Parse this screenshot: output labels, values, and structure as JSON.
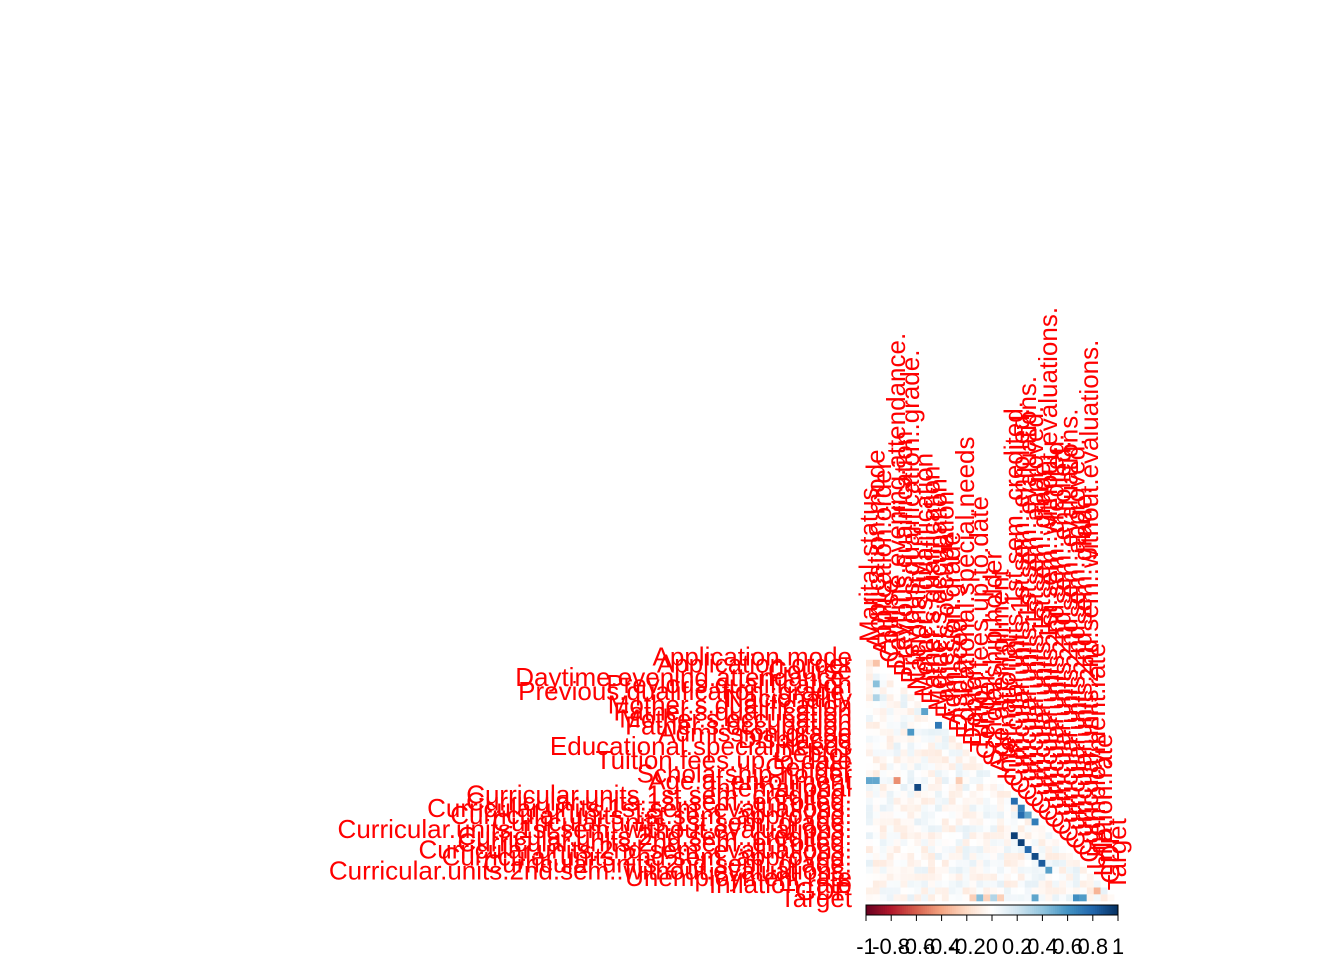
{
  "chart_data": {
    "type": "heatmap",
    "title": "",
    "layout": "lower-triangle correlation matrix",
    "variables": [
      "Marital.status",
      "Application.mode",
      "Application.order",
      "Course",
      "Daytime.evening.attendance.",
      "Previous.qualification",
      "Previous.qualification..grade.",
      "Nacionality",
      "Mother.s.qualification",
      "Father.s.qualification",
      "Mother.s.occupation",
      "Father.s.occupation",
      "Admission.grade",
      "Displaced",
      "Educational.special.needs",
      "Debtor",
      "Tuition.fees.up.to.date",
      "Gender",
      "Scholarship.holder",
      "Age.at.enrollment",
      "International",
      "Curricular.units.1st.sem..credited.",
      "Curricular.units.1st.sem..enrolled.",
      "Curricular.units.1st.sem..evaluations.",
      "Curricular.units.1st.sem..approved.",
      "Curricular.units.1st.sem..grade.",
      "Curricular.units.1st.sem..without.evaluations.",
      "Curricular.units.2nd.sem..credited.",
      "Curricular.units.2nd.sem..enrolled.",
      "Curricular.units.2nd.sem..evaluations.",
      "Curricular.units.2nd.sem..approved.",
      "Curricular.units.2nd.sem..grade.",
      "Curricular.units.2nd.sem..without.evaluations.",
      "Unemployment.rate",
      "Inflation.rate",
      "GDP",
      "Target"
    ],
    "visible_row_labels": [
      "Application.mode",
      "Application.order",
      "Course",
      "Daytime.evening.attendance.",
      "Previous.qualification",
      "Previous.qualification..grade.",
      "Nacionality",
      "Mother.s.qualification",
      "Father.s.qualification",
      "Mother.s.occupation",
      "Father.s.occupation",
      "Admission.grade",
      "Displaced",
      "Educational.special.needs",
      "Debtor",
      "Tuition.fees.up.to.date",
      "Gender",
      "Scholarship.holder",
      "Age.at.enrollment",
      "International",
      "Curricular.units.1st.sem..credited.",
      "Curricular.units.1st.sem..enrolled.",
      "Curricular.units.1st.sem..evaluations.",
      "Curricular.units.1st.sem..approved.",
      "Curricular.units.1st.sem..grade.",
      "Curricular.units.1st.sem..without.evaluations.",
      "Curricular.units.2nd.sem..credited.",
      "Curricular.units.2nd.sem..enrolled.",
      "Curricular.units.2nd.sem..evaluations.",
      "Curricular.units.2nd.sem..approved.",
      "Curricular.units.2nd.sem..grade.",
      "Curricular.units.2nd.sem..without.evaluations.",
      "Unemployment.rate",
      "Inflation.rate",
      "GDP",
      "Target"
    ],
    "colorbar": {
      "range": [
        -1,
        1
      ],
      "ticks": [
        -1,
        -0.8,
        -0.6,
        -0.4,
        -0.2,
        0,
        0.2,
        0.4,
        0.6,
        0.8,
        1
      ],
      "tick_labels": [
        "-1",
        "-0.8",
        "-0.6",
        "-0.4",
        "-0.2",
        "0",
        "0.2",
        "0.4",
        "0.6",
        "0.8",
        "1"
      ],
      "colors": [
        "#67001f",
        "#b2182b",
        "#d6604d",
        "#f4a582",
        "#fddbc7",
        "#ffffff",
        "#d1e5f0",
        "#92c5de",
        "#4393c3",
        "#2166ac",
        "#053061"
      ]
    },
    "label_color": "#ff0000",
    "strong_correlations": [
      {
        "row": "Application.order",
        "col": "Marital.status",
        "value": -0.13
      },
      {
        "row": "Application.order",
        "col": "Application.mode",
        "value": -0.29
      },
      {
        "row": "Previous.qualification",
        "col": "Application.mode",
        "value": 0.42
      },
      {
        "row": "Nacionality",
        "col": "Application.mode",
        "value": 0.31
      },
      {
        "row": "Father.s.qualification",
        "col": "Mother.s.qualification",
        "value": 0.54
      },
      {
        "row": "Father.s.occupation",
        "col": "Mother.s.occupation",
        "value": 0.72
      },
      {
        "row": "Admission.grade",
        "col": "Previous.qualification..grade.",
        "value": 0.58
      },
      {
        "row": "Age.at.enrollment",
        "col": "Marital.status",
        "value": 0.52
      },
      {
        "row": "Age.at.enrollment",
        "col": "Application.mode",
        "value": 0.52
      },
      {
        "row": "Age.at.enrollment",
        "col": "Daytime.evening.attendance.",
        "value": -0.46
      },
      {
        "row": "Age.at.enrollment",
        "col": "Displaced",
        "value": -0.25
      },
      {
        "row": "International",
        "col": "Nacionality",
        "value": 0.91
      },
      {
        "row": "Curricular.units.1st.sem..enrolled.",
        "col": "Curricular.units.1st.sem..credited.",
        "value": 0.77
      },
      {
        "row": "Curricular.units.1st.sem..evaluations.",
        "col": "Curricular.units.1st.sem..enrolled.",
        "value": 0.68
      },
      {
        "row": "Curricular.units.1st.sem..approved.",
        "col": "Curricular.units.1st.sem..enrolled.",
        "value": 0.77
      },
      {
        "row": "Curricular.units.1st.sem..approved.",
        "col": "Curricular.units.1st.sem..evaluations.",
        "value": 0.52
      },
      {
        "row": "Curricular.units.1st.sem..grade.",
        "col": "Curricular.units.1st.sem..approved.",
        "value": 0.7
      },
      {
        "row": "Curricular.units.2nd.sem..credited.",
        "col": "Curricular.units.1st.sem..credited.",
        "value": 0.94
      },
      {
        "row": "Curricular.units.2nd.sem..enrolled.",
        "col": "Curricular.units.1st.sem..enrolled.",
        "value": 0.94
      },
      {
        "row": "Curricular.units.2nd.sem..evaluations.",
        "col": "Curricular.units.1st.sem..evaluations.",
        "value": 0.78
      },
      {
        "row": "Curricular.units.2nd.sem..approved.",
        "col": "Curricular.units.1st.sem..approved.",
        "value": 0.9
      },
      {
        "row": "Curricular.units.2nd.sem..grade.",
        "col": "Curricular.units.1st.sem..grade.",
        "value": 0.84
      },
      {
        "row": "Curricular.units.2nd.sem..without.evaluations.",
        "col": "Curricular.units.1st.sem..without.evaluations.",
        "value": 0.55
      },
      {
        "row": "GDP",
        "col": "Unemployment.rate",
        "value": -0.34
      },
      {
        "row": "Target",
        "col": "Curricular.units.2nd.sem..approved.",
        "value": 0.62
      },
      {
        "row": "Target",
        "col": "Curricular.units.2nd.sem..grade.",
        "value": 0.57
      },
      {
        "row": "Target",
        "col": "Curricular.units.1st.sem..approved.",
        "value": 0.53
      },
      {
        "row": "Target",
        "col": "Tuition.fees.up.to.date",
        "value": 0.43
      },
      {
        "row": "Target",
        "col": "Scholarship.holder",
        "value": 0.3
      },
      {
        "row": "Target",
        "col": "Age.at.enrollment",
        "value": -0.24
      },
      {
        "row": "Target",
        "col": "Debtor",
        "value": -0.24
      },
      {
        "row": "Target",
        "col": "Gender",
        "value": -0.23
      }
    ]
  }
}
